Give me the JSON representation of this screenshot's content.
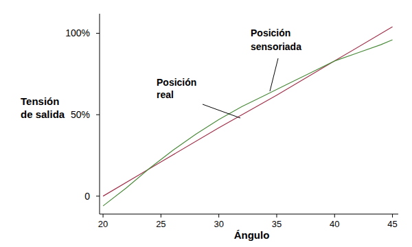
{
  "chart_data": {
    "type": "line",
    "ylabel": "Tensión de salida",
    "xlabel": "Ángulo",
    "xlim": [
      19.7,
      45.5
    ],
    "xticks": [
      20,
      25,
      30,
      35,
      40,
      45
    ],
    "ylim": [
      -11,
      112
    ],
    "yticks": [
      0,
      {
        "value": 50,
        "label": "50%"
      },
      {
        "value": 100,
        "label": "100%"
      }
    ],
    "grid": false,
    "series": [
      {
        "name": "Posición real",
        "color": "#a0304a",
        "x": [
          20,
          25,
          30,
          35,
          40,
          45
        ],
        "values": [
          0,
          21,
          42,
          62,
          83,
          104
        ]
      },
      {
        "name": "Posición sensoriada",
        "color": "#4a8a3a",
        "x": [
          20,
          22,
          24,
          26,
          28,
          30,
          32,
          34,
          36,
          38,
          40,
          42,
          44,
          45
        ],
        "values": [
          -6,
          5,
          17,
          28,
          38,
          47,
          55,
          62,
          69,
          76,
          83,
          88,
          93,
          96
        ]
      }
    ]
  }
}
